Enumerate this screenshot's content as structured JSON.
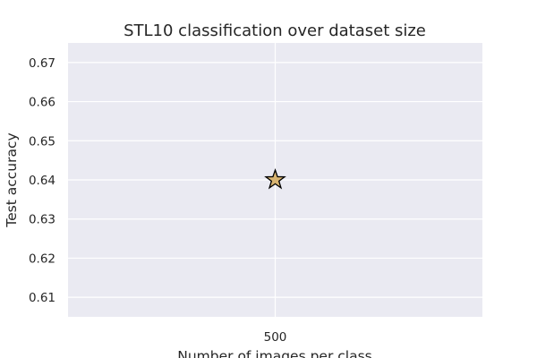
{
  "chart_data": {
    "type": "scatter",
    "title": "STL10 classification over dataset size",
    "xlabel": "Number of images per class",
    "ylabel": "Test accuracy",
    "x_ticks": [
      500
    ],
    "y_ticks": [
      0.61,
      0.62,
      0.63,
      0.64,
      0.65,
      0.66,
      0.67
    ],
    "xlim": [
      485,
      515
    ],
    "ylim": [
      0.605,
      0.675
    ],
    "grid": true,
    "points": [
      {
        "x": 500,
        "y": 0.64,
        "marker": "star"
      }
    ],
    "colors": {
      "background": "#eaeaf2",
      "grid": "#ffffff",
      "marker_fill": "#d8b471",
      "marker_edge": "#000000",
      "text": "#262626"
    }
  }
}
